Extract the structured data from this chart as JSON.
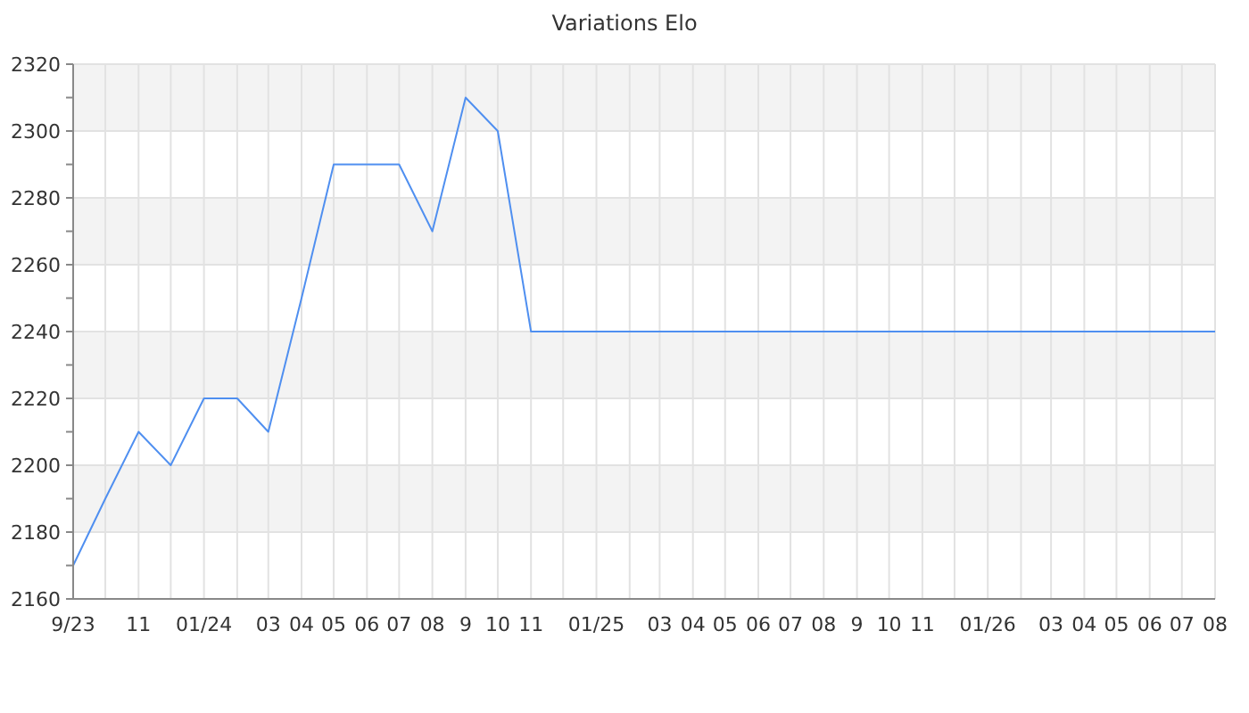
{
  "chart_data": {
    "type": "line",
    "title": "Variations Elo",
    "x": [
      "2023-09",
      "2023-10",
      "2023-11",
      "2023-12",
      "2024-01",
      "2024-02",
      "2024-03",
      "2024-04",
      "2024-05",
      "2024-06",
      "2024-07",
      "2024-08",
      "2024-09",
      "2024-10",
      "2024-11",
      "2024-12",
      "2025-01",
      "2025-02",
      "2025-03",
      "2025-04",
      "2025-05",
      "2025-06",
      "2025-07",
      "2025-08",
      "2025-09",
      "2025-10",
      "2025-11",
      "2025-12",
      "2026-01",
      "2026-02",
      "2026-03",
      "2026-04",
      "2026-05",
      "2026-06",
      "2026-07",
      "2026-08"
    ],
    "series": [
      {
        "color": "#4f8ff0",
        "values": [
          2170,
          2190,
          2210,
          2200,
          2220,
          2220,
          2210,
          2250,
          2290,
          2290,
          2290,
          2270,
          2310,
          2300,
          2240,
          2240,
          2240,
          2240,
          2240,
          2240,
          2240,
          2240,
          2240,
          2240,
          2240,
          2240,
          2240,
          2240,
          2240,
          2240,
          2240,
          2240,
          2240,
          2240,
          2240,
          2240
        ]
      }
    ],
    "xlim": [
      "2023-09",
      "2026-08"
    ],
    "xticks": [
      {
        "value": "2023-09",
        "label": "9/23"
      },
      {
        "value": "2023-10",
        "label": null
      },
      {
        "value": "2023-11",
        "label": "11"
      },
      {
        "value": "2023-12",
        "label": null
      },
      {
        "value": "2024-01",
        "label": "01/24"
      },
      {
        "value": "2024-02",
        "label": null
      },
      {
        "value": "2024-03",
        "label": "03"
      },
      {
        "value": "2024-04",
        "label": "04"
      },
      {
        "value": "2024-05",
        "label": "05"
      },
      {
        "value": "2024-06",
        "label": "06"
      },
      {
        "value": "2024-07",
        "label": "07"
      },
      {
        "value": "2024-08",
        "label": "08"
      },
      {
        "value": "2024-09",
        "label": "9"
      },
      {
        "value": "2024-10",
        "label": "10"
      },
      {
        "value": "2024-11",
        "label": "11"
      },
      {
        "value": "2024-12",
        "label": null
      },
      {
        "value": "2025-01",
        "label": "01/25"
      },
      {
        "value": "2025-02",
        "label": null
      },
      {
        "value": "2025-03",
        "label": "03"
      },
      {
        "value": "2025-04",
        "label": "04"
      },
      {
        "value": "2025-05",
        "label": "05"
      },
      {
        "value": "2025-06",
        "label": "06"
      },
      {
        "value": "2025-07",
        "label": "07"
      },
      {
        "value": "2025-08",
        "label": "08"
      },
      {
        "value": "2025-09",
        "label": "9"
      },
      {
        "value": "2025-10",
        "label": "10"
      },
      {
        "value": "2025-11",
        "label": "11"
      },
      {
        "value": "2025-12",
        "label": null
      },
      {
        "value": "2026-01",
        "label": "01/26"
      },
      {
        "value": "2026-02",
        "label": null
      },
      {
        "value": "2026-03",
        "label": "03"
      },
      {
        "value": "2026-04",
        "label": "04"
      },
      {
        "value": "2026-05",
        "label": "05"
      },
      {
        "value": "2026-06",
        "label": "06"
      },
      {
        "value": "2026-07",
        "label": "07"
      },
      {
        "value": "2026-08",
        "label": "08"
      }
    ],
    "ylim": [
      2160,
      2320
    ],
    "yticks": [
      2160,
      {
        "value": 2170,
        "label": null
      },
      2180,
      {
        "value": 2190,
        "label": null
      },
      2200,
      {
        "value": 2210,
        "label": null
      },
      2220,
      {
        "value": 2230,
        "label": null
      },
      2240,
      {
        "value": 2250,
        "label": null
      },
      2260,
      {
        "value": 2270,
        "label": null
      },
      2280,
      {
        "value": 2290,
        "label": null
      },
      2300,
      {
        "value": 2310,
        "label": null
      },
      2320
    ],
    "grid": true,
    "marker": "none",
    "line_style": "solid"
  }
}
